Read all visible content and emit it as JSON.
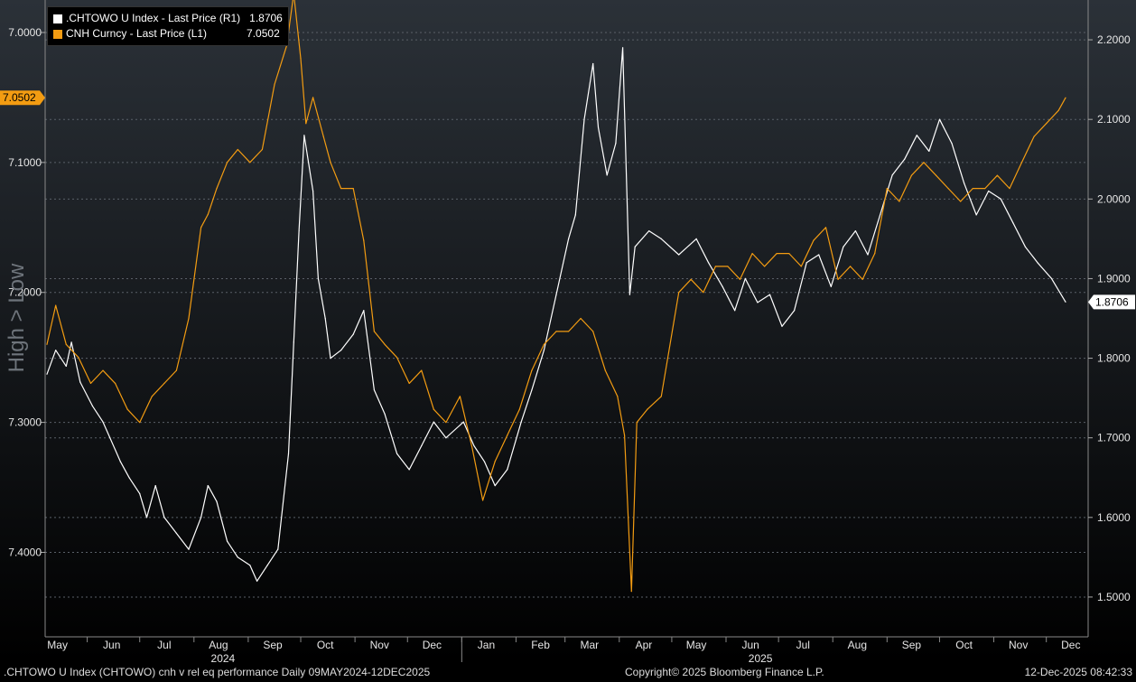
{
  "chart_data": {
    "type": "line",
    "legend": {
      "placement": "top-left",
      "entries": [
        {
          "label": ".CHTOWO U Index - Last Price (R1)",
          "value": "1.8706",
          "color": "#ffffff"
        },
        {
          "label": "CNH Curncy - Last Price (L1)",
          "value": "7.0502",
          "color": "#f39c12"
        }
      ]
    },
    "left_axis": {
      "ylabel": "High > Low",
      "inverted": true,
      "ylim": [
        6.975,
        7.465
      ],
      "ticks": [
        "7.0000",
        "7.1000",
        "7.2000",
        "7.3000",
        "7.4000"
      ],
      "last_value_label": "7.0502"
    },
    "right_axis": {
      "ylim": [
        1.45,
        2.25
      ],
      "ticks": [
        "1.5000",
        "1.6000",
        "1.7000",
        "1.8000",
        "1.9000",
        "2.0000",
        "2.1000",
        "2.2000"
      ],
      "last_value_label": "1.8706"
    },
    "x_axis": {
      "range": [
        "2024-05-09",
        "2025-12-12"
      ],
      "months": [
        "May",
        "Jun",
        "Jul",
        "Aug",
        "Sep",
        "Oct",
        "Nov",
        "Dec",
        "Jan",
        "Feb",
        "Mar",
        "Apr",
        "May",
        "Jun",
        "Jul",
        "Aug",
        "Sep",
        "Oct",
        "Nov",
        "Dec"
      ],
      "years": [
        "2024",
        "2025"
      ]
    },
    "grid": true,
    "series": [
      {
        "name": ".CHTOWO U Index - Last Price (R1)",
        "axis": "right",
        "color": "#ffffff",
        "points": [
          [
            "2024-05-09",
            1.78
          ],
          [
            "2024-05-14",
            1.81
          ],
          [
            "2024-05-20",
            1.79
          ],
          [
            "2024-05-23",
            1.82
          ],
          [
            "2024-05-28",
            1.77
          ],
          [
            "2024-06-04",
            1.74
          ],
          [
            "2024-06-10",
            1.72
          ],
          [
            "2024-06-14",
            1.7
          ],
          [
            "2024-06-20",
            1.67
          ],
          [
            "2024-06-25",
            1.65
          ],
          [
            "2024-07-01",
            1.63
          ],
          [
            "2024-07-05",
            1.6
          ],
          [
            "2024-07-10",
            1.64
          ],
          [
            "2024-07-15",
            1.6
          ],
          [
            "2024-07-22",
            1.58
          ],
          [
            "2024-07-29",
            1.56
          ],
          [
            "2024-08-05",
            1.6
          ],
          [
            "2024-08-09",
            1.64
          ],
          [
            "2024-08-14",
            1.62
          ],
          [
            "2024-08-20",
            1.57
          ],
          [
            "2024-08-26",
            1.55
          ],
          [
            "2024-09-02",
            1.54
          ],
          [
            "2024-09-06",
            1.52
          ],
          [
            "2024-09-12",
            1.54
          ],
          [
            "2024-09-18",
            1.56
          ],
          [
            "2024-09-24",
            1.68
          ],
          [
            "2024-09-27",
            1.82
          ],
          [
            "2024-09-30",
            1.96
          ],
          [
            "2024-10-03",
            2.08
          ],
          [
            "2024-10-08",
            2.01
          ],
          [
            "2024-10-11",
            1.9
          ],
          [
            "2024-10-15",
            1.85
          ],
          [
            "2024-10-18",
            1.8
          ],
          [
            "2024-10-24",
            1.81
          ],
          [
            "2024-10-31",
            1.83
          ],
          [
            "2024-11-06",
            1.86
          ],
          [
            "2024-11-12",
            1.76
          ],
          [
            "2024-11-18",
            1.73
          ],
          [
            "2024-11-25",
            1.68
          ],
          [
            "2024-12-02",
            1.66
          ],
          [
            "2024-12-09",
            1.69
          ],
          [
            "2024-12-16",
            1.72
          ],
          [
            "2024-12-23",
            1.7
          ],
          [
            "2025-01-02",
            1.72
          ],
          [
            "2025-01-08",
            1.69
          ],
          [
            "2025-01-14",
            1.67
          ],
          [
            "2025-01-20",
            1.64
          ],
          [
            "2025-01-27",
            1.66
          ],
          [
            "2025-02-04",
            1.72
          ],
          [
            "2025-02-10",
            1.76
          ],
          [
            "2025-02-17",
            1.81
          ],
          [
            "2025-02-24",
            1.88
          ],
          [
            "2025-03-03",
            1.95
          ],
          [
            "2025-03-07",
            1.98
          ],
          [
            "2025-03-12",
            2.1
          ],
          [
            "2025-03-17",
            2.17
          ],
          [
            "2025-03-20",
            2.09
          ],
          [
            "2025-03-25",
            2.03
          ],
          [
            "2025-03-30",
            2.07
          ],
          [
            "2025-04-03",
            2.19
          ],
          [
            "2025-04-07",
            1.88
          ],
          [
            "2025-04-10",
            1.94
          ],
          [
            "2025-04-18",
            1.96
          ],
          [
            "2025-04-25",
            1.95
          ],
          [
            "2025-05-05",
            1.93
          ],
          [
            "2025-05-15",
            1.95
          ],
          [
            "2025-05-22",
            1.92
          ],
          [
            "2025-05-30",
            1.89
          ],
          [
            "2025-06-06",
            1.86
          ],
          [
            "2025-06-12",
            1.9
          ],
          [
            "2025-06-19",
            1.87
          ],
          [
            "2025-06-26",
            1.88
          ],
          [
            "2025-07-03",
            1.84
          ],
          [
            "2025-07-10",
            1.86
          ],
          [
            "2025-07-17",
            1.92
          ],
          [
            "2025-07-24",
            1.93
          ],
          [
            "2025-07-31",
            1.89
          ],
          [
            "2025-08-07",
            1.94
          ],
          [
            "2025-08-14",
            1.96
          ],
          [
            "2025-08-21",
            1.93
          ],
          [
            "2025-08-28",
            1.98
          ],
          [
            "2025-09-04",
            2.03
          ],
          [
            "2025-09-11",
            2.05
          ],
          [
            "2025-09-18",
            2.08
          ],
          [
            "2025-09-25",
            2.06
          ],
          [
            "2025-10-01",
            2.1
          ],
          [
            "2025-10-08",
            2.07
          ],
          [
            "2025-10-15",
            2.02
          ],
          [
            "2025-10-22",
            1.98
          ],
          [
            "2025-10-29",
            2.01
          ],
          [
            "2025-11-05",
            2.0
          ],
          [
            "2025-11-12",
            1.97
          ],
          [
            "2025-11-19",
            1.94
          ],
          [
            "2025-11-26",
            1.92
          ],
          [
            "2025-12-04",
            1.9
          ],
          [
            "2025-12-12",
            1.8706
          ]
        ]
      },
      {
        "name": "CNH Curncy - Last Price (L1)",
        "axis": "left",
        "color": "#f39c12",
        "points": [
          [
            "2024-05-09",
            7.24
          ],
          [
            "2024-05-14",
            7.21
          ],
          [
            "2024-05-20",
            7.24
          ],
          [
            "2024-05-27",
            7.25
          ],
          [
            "2024-06-03",
            7.27
          ],
          [
            "2024-06-10",
            7.26
          ],
          [
            "2024-06-17",
            7.27
          ],
          [
            "2024-06-24",
            7.29
          ],
          [
            "2024-07-01",
            7.3
          ],
          [
            "2024-07-08",
            7.28
          ],
          [
            "2024-07-15",
            7.27
          ],
          [
            "2024-07-22",
            7.26
          ],
          [
            "2024-07-29",
            7.22
          ],
          [
            "2024-08-05",
            7.15
          ],
          [
            "2024-08-09",
            7.14
          ],
          [
            "2024-08-14",
            7.12
          ],
          [
            "2024-08-20",
            7.1
          ],
          [
            "2024-08-26",
            7.09
          ],
          [
            "2024-09-02",
            7.1
          ],
          [
            "2024-09-09",
            7.09
          ],
          [
            "2024-09-16",
            7.04
          ],
          [
            "2024-09-23",
            7.01
          ],
          [
            "2024-09-27",
            6.97
          ],
          [
            "2024-10-01",
            7.02
          ],
          [
            "2024-10-04",
            7.07
          ],
          [
            "2024-10-08",
            7.05
          ],
          [
            "2024-10-14",
            7.08
          ],
          [
            "2024-10-18",
            7.1
          ],
          [
            "2024-10-24",
            7.12
          ],
          [
            "2024-10-31",
            7.12
          ],
          [
            "2024-11-06",
            7.16
          ],
          [
            "2024-11-12",
            7.23
          ],
          [
            "2024-11-18",
            7.24
          ],
          [
            "2024-11-25",
            7.25
          ],
          [
            "2024-12-02",
            7.27
          ],
          [
            "2024-12-09",
            7.26
          ],
          [
            "2024-12-16",
            7.29
          ],
          [
            "2024-12-23",
            7.3
          ],
          [
            "2024-12-31",
            7.28
          ],
          [
            "2025-01-07",
            7.32
          ],
          [
            "2025-01-13",
            7.36
          ],
          [
            "2025-01-20",
            7.33
          ],
          [
            "2025-01-27",
            7.31
          ],
          [
            "2025-02-03",
            7.29
          ],
          [
            "2025-02-10",
            7.26
          ],
          [
            "2025-02-17",
            7.24
          ],
          [
            "2025-02-24",
            7.23
          ],
          [
            "2025-03-03",
            7.23
          ],
          [
            "2025-03-10",
            7.22
          ],
          [
            "2025-03-17",
            7.23
          ],
          [
            "2025-03-24",
            7.26
          ],
          [
            "2025-03-31",
            7.28
          ],
          [
            "2025-04-04",
            7.31
          ],
          [
            "2025-04-08",
            7.43
          ],
          [
            "2025-04-11",
            7.3
          ],
          [
            "2025-04-17",
            7.29
          ],
          [
            "2025-04-25",
            7.28
          ],
          [
            "2025-05-05",
            7.2
          ],
          [
            "2025-05-12",
            7.19
          ],
          [
            "2025-05-19",
            7.2
          ],
          [
            "2025-05-26",
            7.18
          ],
          [
            "2025-06-02",
            7.18
          ],
          [
            "2025-06-09",
            7.19
          ],
          [
            "2025-06-16",
            7.17
          ],
          [
            "2025-06-23",
            7.18
          ],
          [
            "2025-06-30",
            7.17
          ],
          [
            "2025-07-07",
            7.17
          ],
          [
            "2025-07-14",
            7.18
          ],
          [
            "2025-07-21",
            7.16
          ],
          [
            "2025-07-28",
            7.15
          ],
          [
            "2025-08-04",
            7.19
          ],
          [
            "2025-08-11",
            7.18
          ],
          [
            "2025-08-18",
            7.19
          ],
          [
            "2025-08-25",
            7.17
          ],
          [
            "2025-09-01",
            7.12
          ],
          [
            "2025-09-08",
            7.13
          ],
          [
            "2025-09-15",
            7.11
          ],
          [
            "2025-09-22",
            7.1
          ],
          [
            "2025-09-29",
            7.11
          ],
          [
            "2025-10-06",
            7.12
          ],
          [
            "2025-10-13",
            7.13
          ],
          [
            "2025-10-20",
            7.12
          ],
          [
            "2025-10-27",
            7.12
          ],
          [
            "2025-11-03",
            7.11
          ],
          [
            "2025-11-10",
            7.12
          ],
          [
            "2025-11-17",
            7.1
          ],
          [
            "2025-11-24",
            7.08
          ],
          [
            "2025-12-01",
            7.07
          ],
          [
            "2025-12-08",
            7.06
          ],
          [
            "2025-12-12",
            7.0502
          ]
        ]
      }
    ]
  },
  "footer": {
    "left": ".CHTOWO U Index (CHTOWO) cnh v rel eq performance Daily 09MAY2024-12DEC2025",
    "center": "Copyright© 2025 Bloomberg Finance L.P.",
    "right": "12-Dec-2025 08:42:33"
  },
  "colors": {
    "background": "#000000",
    "cnh": "#f39c12",
    "index": "#ffffff",
    "grid": "#4a4f56"
  }
}
